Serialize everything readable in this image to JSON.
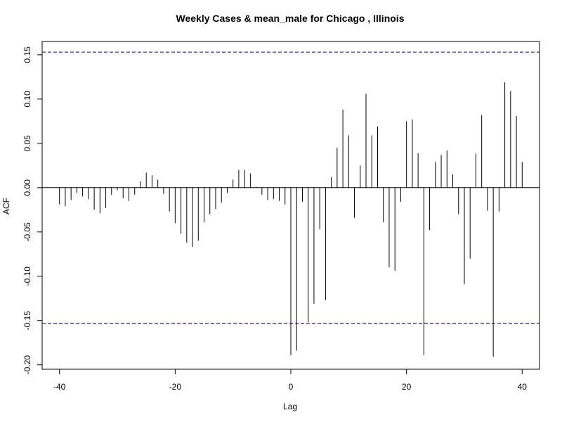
{
  "chart_data": {
    "type": "bar",
    "title": "Weekly Cases & mean_male for Chicago , Illinois",
    "xlabel": "Lag",
    "ylabel": "ACF",
    "xlim": [
      -43,
      43
    ],
    "ylim": [
      -0.205,
      0.165
    ],
    "xticks": [
      -40,
      -20,
      0,
      20,
      40
    ],
    "xtick_labels": [
      "-40",
      "-20",
      "0",
      "20",
      "40"
    ],
    "yticks": [
      -0.2,
      -0.15,
      -0.1,
      -0.05,
      0.0,
      0.05,
      0.1,
      0.15
    ],
    "ytick_labels": [
      "-0.20",
      "-0.15",
      "-0.10",
      "-0.05",
      "0.00",
      "0.05",
      "0.10",
      "0.15"
    ],
    "confidence_bound": 0.153,
    "bound_color": "#0000cc",
    "bar_color": "#000000",
    "grid": false,
    "lags": [
      -40,
      -39,
      -38,
      -37,
      -36,
      -35,
      -34,
      -33,
      -32,
      -31,
      -30,
      -29,
      -28,
      -27,
      -26,
      -25,
      -24,
      -23,
      -22,
      -21,
      -20,
      -19,
      -18,
      -17,
      -16,
      -15,
      -14,
      -13,
      -12,
      -11,
      -10,
      -9,
      -8,
      -7,
      -6,
      -5,
      -4,
      -3,
      -2,
      -1,
      0,
      1,
      2,
      3,
      4,
      5,
      6,
      7,
      8,
      9,
      10,
      11,
      12,
      13,
      14,
      15,
      16,
      17,
      18,
      19,
      20,
      21,
      22,
      23,
      24,
      25,
      26,
      27,
      28,
      29,
      30,
      31,
      32,
      33,
      34,
      35,
      36,
      37,
      38,
      39,
      40
    ],
    "values": [
      -0.019,
      -0.021,
      -0.014,
      -0.006,
      -0.01,
      -0.013,
      -0.025,
      -0.029,
      -0.023,
      -0.008,
      -0.003,
      -0.012,
      -0.015,
      -0.008,
      0.007,
      0.017,
      0.014,
      0.009,
      -0.007,
      -0.027,
      -0.04,
      -0.052,
      -0.062,
      -0.067,
      -0.06,
      -0.039,
      -0.03,
      -0.024,
      -0.017,
      -0.006,
      0.009,
      0.02,
      0.02,
      0.016,
      0.001,
      -0.008,
      -0.014,
      -0.013,
      -0.015,
      -0.019,
      -0.189,
      -0.184,
      -0.016,
      -0.152,
      -0.131,
      -0.047,
      -0.127,
      0.012,
      0.045,
      0.088,
      0.059,
      -0.034,
      0.025,
      0.106,
      0.059,
      0.069,
      -0.039,
      -0.09,
      -0.094,
      -0.016,
      0.075,
      0.077,
      0.039,
      -0.189,
      -0.048,
      0.029,
      0.037,
      0.042,
      0.015,
      -0.03,
      -0.109,
      -0.08,
      0.039,
      0.082,
      -0.026,
      -0.191,
      -0.027,
      0.119,
      0.109,
      0.081,
      0.029
    ]
  }
}
